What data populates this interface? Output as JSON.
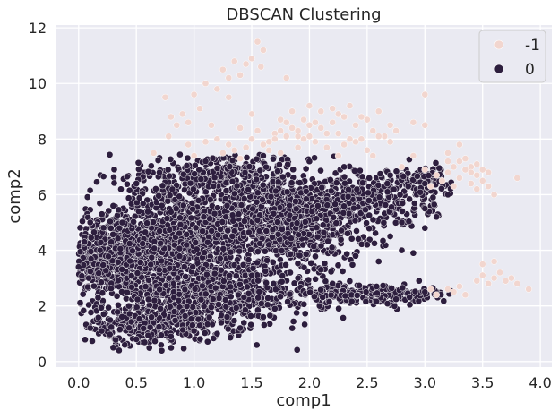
{
  "chart_data": {
    "type": "scatter",
    "title": "DBSCAN Clustering",
    "xlabel": "comp1",
    "ylabel": "comp2",
    "xlim": [
      -0.2,
      4.1
    ],
    "ylim": [
      -0.2,
      12.1
    ],
    "xticks": [
      0.0,
      0.5,
      1.0,
      1.5,
      2.0,
      2.5,
      3.0,
      3.5,
      4.0
    ],
    "xtick_labels": [
      "0.0",
      "0.5",
      "1.0",
      "1.5",
      "2.0",
      "2.5",
      "3.0",
      "3.5",
      "4.0"
    ],
    "yticks": [
      0,
      2,
      4,
      6,
      8,
      10,
      12
    ],
    "ytick_labels": [
      "0",
      "2",
      "4",
      "6",
      "8",
      "10",
      "12"
    ],
    "grid": true,
    "legend": {
      "placement": "top-right",
      "entries": [
        {
          "label": "-1",
          "color": "#f2d6cf"
        },
        {
          "label": "0",
          "color": "#2d1e3e"
        }
      ]
    },
    "background_color": "#eaeaf2",
    "series": [
      {
        "name": "-1",
        "color": "#f2d6cf",
        "points": [
          [
            1.55,
            11.5
          ],
          [
            1.6,
            11.2
          ],
          [
            1.5,
            10.9
          ],
          [
            1.35,
            10.8
          ],
          [
            1.45,
            10.7
          ],
          [
            1.25,
            10.5
          ],
          [
            1.58,
            10.6
          ],
          [
            1.3,
            10.2
          ],
          [
            1.1,
            10.0
          ],
          [
            1.4,
            10.3
          ],
          [
            1.8,
            10.2
          ],
          [
            1.2,
            9.8
          ],
          [
            1.0,
            9.6
          ],
          [
            1.3,
            9.5
          ],
          [
            0.75,
            9.5
          ],
          [
            1.05,
            9.1
          ],
          [
            0.9,
            8.9
          ],
          [
            0.95,
            8.6
          ],
          [
            0.85,
            8.5
          ],
          [
            0.8,
            8.8
          ],
          [
            1.15,
            8.5
          ],
          [
            0.78,
            8.1
          ],
          [
            0.65,
            7.5
          ],
          [
            0.95,
            7.8
          ],
          [
            1.0,
            7.4
          ],
          [
            1.1,
            7.9
          ],
          [
            1.2,
            8.0
          ],
          [
            1.4,
            8.4
          ],
          [
            1.5,
            8.0
          ],
          [
            1.5,
            8.9
          ],
          [
            1.3,
            7.8
          ],
          [
            1.35,
            7.6
          ],
          [
            1.45,
            7.7
          ],
          [
            1.6,
            7.8
          ],
          [
            1.7,
            8.2
          ],
          [
            1.8,
            8.6
          ],
          [
            1.85,
            9.0
          ],
          [
            1.9,
            8.3
          ],
          [
            1.95,
            8.7
          ],
          [
            2.0,
            9.2
          ],
          [
            2.0,
            8.1
          ],
          [
            2.05,
            7.9
          ],
          [
            2.1,
            8.4
          ],
          [
            2.1,
            9.0
          ],
          [
            2.2,
            8.6
          ],
          [
            2.2,
            9.1
          ],
          [
            2.25,
            8.2
          ],
          [
            2.3,
            8.8
          ],
          [
            2.3,
            7.8
          ],
          [
            2.35,
            9.2
          ],
          [
            2.4,
            8.5
          ],
          [
            2.45,
            8.0
          ],
          [
            2.5,
            8.7
          ],
          [
            2.5,
            7.6
          ],
          [
            2.55,
            8.3
          ],
          [
            2.6,
            9.0
          ],
          [
            2.65,
            8.1
          ],
          [
            2.7,
            8.5
          ],
          [
            2.0,
            8.5
          ],
          [
            1.9,
            7.7
          ],
          [
            1.75,
            7.5
          ],
          [
            1.65,
            7.9
          ],
          [
            1.55,
            8.3
          ],
          [
            2.15,
            7.7
          ],
          [
            2.25,
            7.4
          ],
          [
            2.4,
            7.9
          ],
          [
            2.55,
            7.4
          ],
          [
            2.7,
            7.9
          ],
          [
            2.8,
            7.0
          ],
          [
            3.0,
            8.5
          ],
          [
            3.0,
            9.6
          ],
          [
            2.9,
            8.6
          ],
          [
            2.75,
            8.3
          ],
          [
            2.6,
            8.1
          ],
          [
            1.7,
            8.0
          ],
          [
            1.8,
            8.1
          ],
          [
            1.85,
            8.4
          ],
          [
            1.75,
            8.7
          ],
          [
            1.95,
            8.0
          ],
          [
            2.05,
            8.6
          ],
          [
            1.75,
            8.3
          ],
          [
            1.9,
            8.1
          ],
          [
            2.15,
            8.2
          ],
          [
            2.35,
            8.0
          ],
          [
            2.45,
            8.8
          ],
          [
            2.25,
            8.9
          ],
          [
            1.65,
            7.6
          ],
          [
            1.4,
            7.3
          ],
          [
            1.25,
            7.5
          ],
          [
            2.9,
            7.4
          ],
          [
            3.0,
            6.9
          ],
          [
            3.1,
            6.7
          ],
          [
            3.2,
            6.8
          ],
          [
            3.25,
            7.0
          ],
          [
            3.3,
            6.6
          ],
          [
            3.35,
            6.9
          ],
          [
            3.4,
            7.0
          ],
          [
            3.45,
            6.7
          ],
          [
            3.5,
            6.5
          ],
          [
            3.5,
            6.9
          ],
          [
            3.4,
            6.4
          ],
          [
            3.45,
            6.2
          ],
          [
            3.3,
            7.2
          ],
          [
            3.2,
            7.5
          ],
          [
            3.35,
            7.3
          ],
          [
            3.45,
            7.1
          ],
          [
            3.55,
            6.8
          ],
          [
            3.55,
            6.3
          ],
          [
            3.6,
            6.0
          ],
          [
            3.15,
            6.5
          ],
          [
            3.25,
            6.3
          ],
          [
            3.05,
            6.3
          ],
          [
            3.3,
            7.8
          ],
          [
            3.2,
            7.2
          ],
          [
            3.4,
            6.8
          ],
          [
            3.8,
            6.6
          ],
          [
            3.1,
            2.4
          ],
          [
            3.2,
            2.6
          ],
          [
            3.3,
            2.7
          ],
          [
            3.35,
            2.4
          ],
          [
            3.45,
            2.9
          ],
          [
            3.5,
            3.1
          ],
          [
            3.55,
            2.8
          ],
          [
            3.6,
            3.0
          ],
          [
            3.65,
            3.2
          ],
          [
            3.7,
            2.9
          ],
          [
            3.75,
            3.0
          ],
          [
            3.8,
            2.8
          ],
          [
            3.9,
            2.6
          ],
          [
            3.5,
            3.5
          ],
          [
            3.6,
            3.6
          ],
          [
            3.05,
            2.6
          ],
          [
            3.25,
            2.5
          ]
        ]
      },
      {
        "name": "0",
        "color": "#2d1e3e",
        "blobs": [
          {
            "cx": 0.35,
            "cy": 3.8,
            "sx": 0.28,
            "sy": 0.7,
            "n": 900
          },
          {
            "cx": 0.9,
            "cy": 4.4,
            "sx": 0.35,
            "sy": 0.8,
            "n": 700
          },
          {
            "cx": 1.75,
            "cy": 4.9,
            "sx": 0.35,
            "sy": 0.85,
            "n": 800
          },
          {
            "cx": 1.15,
            "cy": 2.3,
            "sx": 0.45,
            "sy": 0.55,
            "n": 650
          },
          {
            "cx": 0.6,
            "cy": 1.3,
            "sx": 0.3,
            "sy": 0.35,
            "n": 300
          },
          {
            "cx": 2.4,
            "cy": 5.8,
            "sx": 0.35,
            "sy": 0.45,
            "n": 350
          },
          {
            "cx": 1.0,
            "cy": 6.2,
            "sx": 0.4,
            "sy": 0.6,
            "n": 250
          },
          {
            "cx": 2.55,
            "cy": 2.4,
            "sx": 0.35,
            "sy": 0.18,
            "n": 220
          },
          {
            "cx": 2.9,
            "cy": 6.5,
            "sx": 0.25,
            "sy": 0.25,
            "n": 120
          },
          {
            "cx": 1.4,
            "cy": 6.8,
            "sx": 0.3,
            "sy": 0.35,
            "n": 160
          }
        ],
        "sparse_points": [
          [
            0.3,
            0.5
          ],
          [
            0.4,
            0.6
          ],
          [
            0.5,
            0.8
          ],
          [
            0.1,
            1.2
          ],
          [
            0.2,
            1.1
          ],
          [
            0.05,
            4.3
          ],
          [
            0.0,
            3.4
          ],
          [
            0.1,
            5.0
          ],
          [
            0.3,
            5.6
          ],
          [
            0.5,
            6.4
          ],
          [
            0.7,
            6.8
          ],
          [
            1.1,
            7.2
          ],
          [
            1.6,
            7.4
          ],
          [
            2.0,
            7.2
          ],
          [
            2.3,
            7.0
          ],
          [
            2.7,
            6.7
          ],
          [
            3.0,
            6.4
          ],
          [
            3.2,
            6.0
          ],
          [
            3.0,
            5.5
          ],
          [
            2.8,
            5.0
          ],
          [
            2.7,
            4.5
          ],
          [
            2.5,
            4.2
          ],
          [
            2.4,
            3.8
          ],
          [
            2.6,
            3.6
          ],
          [
            2.8,
            4.0
          ],
          [
            3.0,
            4.8
          ],
          [
            3.1,
            5.2
          ],
          [
            2.9,
            3.9
          ],
          [
            2.1,
            3.3
          ],
          [
            2.2,
            2.8
          ],
          [
            3.0,
            2.5
          ],
          [
            2.95,
            2.9
          ],
          [
            1.9,
            3.0
          ],
          [
            1.7,
            1.9
          ],
          [
            1.6,
            1.6
          ],
          [
            1.4,
            1.2
          ],
          [
            1.2,
            1.0
          ],
          [
            1.0,
            1.1
          ],
          [
            0.8,
            0.9
          ],
          [
            0.35,
            0.4
          ]
        ]
      }
    ]
  }
}
